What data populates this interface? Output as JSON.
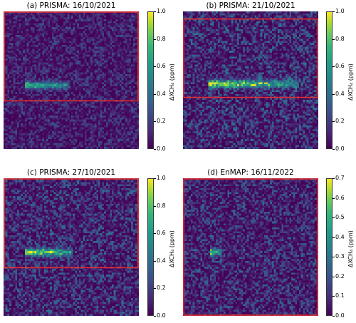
{
  "chart_data": [
    {
      "type": "heatmap",
      "title": "(a) PRISMA: 16/10/2021",
      "colorbar_label": "ΔXCH₄ (ppm)",
      "colorbar_range": [
        0.0,
        1.0
      ],
      "colorbar_ticks": [
        "0.0",
        "0.2",
        "0.4",
        "0.6",
        "0.8",
        "1.0"
      ],
      "colormap": "viridis",
      "plume": {
        "row_frac": 0.53,
        "col_start": 0.15,
        "col_end": 0.48,
        "peak": 0.7
      },
      "box": {
        "top": 0.0,
        "bottom": 0.655
      },
      "noise_mean": 0.12
    },
    {
      "type": "heatmap",
      "title": "(b) PRISMA: 21/10/2021",
      "colorbar_label": "ΔXCH₄ (ppm)",
      "colorbar_range": [
        0.0,
        1.0
      ],
      "colorbar_ticks": [
        "0.0",
        "0.2",
        "0.4",
        "0.6",
        "0.8",
        "1.0"
      ],
      "colormap": "viridis",
      "plume": {
        "row_frac": 0.52,
        "col_start": 0.18,
        "col_end": 0.85,
        "peak": 0.9
      },
      "box": {
        "top": 0.05,
        "bottom": 0.63
      },
      "noise_mean": 0.18
    },
    {
      "type": "heatmap",
      "title": "(c) PRISMA: 27/10/2021",
      "colorbar_label": "ΔXCH₄ (ppm)",
      "colorbar_range": [
        0.0,
        1.0
      ],
      "colorbar_ticks": [
        "0.0",
        "0.2",
        "0.4",
        "0.6",
        "0.8",
        "1.0"
      ],
      "colormap": "viridis",
      "plume": {
        "row_frac": 0.53,
        "col_start": 0.15,
        "col_end": 0.5,
        "peak": 0.85
      },
      "box": {
        "top": 0.0,
        "bottom": 0.655
      },
      "noise_mean": 0.17
    },
    {
      "type": "heatmap",
      "title": "(d) EnMAP: 16/11/2022",
      "colorbar_label": "ΔXCH₄ (ppm)",
      "colorbar_range": [
        0.0,
        0.7
      ],
      "colorbar_ticks": [
        "0.0",
        "0.1",
        "0.2",
        "0.3",
        "0.4",
        "0.5",
        "0.6",
        "0.7"
      ],
      "colormap": "viridis",
      "plume": {
        "row_frac": 0.53,
        "col_start": 0.2,
        "col_end": 0.28,
        "peak": 0.55
      },
      "box": {
        "top": 0.0,
        "bottom": 1.0
      },
      "noise_mean": 0.11
    }
  ]
}
